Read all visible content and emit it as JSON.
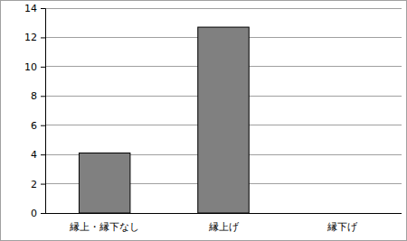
{
  "chart_data": {
    "type": "bar",
    "categories": [
      "縁上・縁下なし",
      "縁上げ",
      "縁下げ"
    ],
    "values": [
      4.1,
      12.7,
      0
    ],
    "color": "#808080",
    "ylim": [
      0,
      14
    ],
    "yticks": [
      0,
      2,
      4,
      6,
      8,
      10,
      12,
      14
    ],
    "grid": true
  }
}
